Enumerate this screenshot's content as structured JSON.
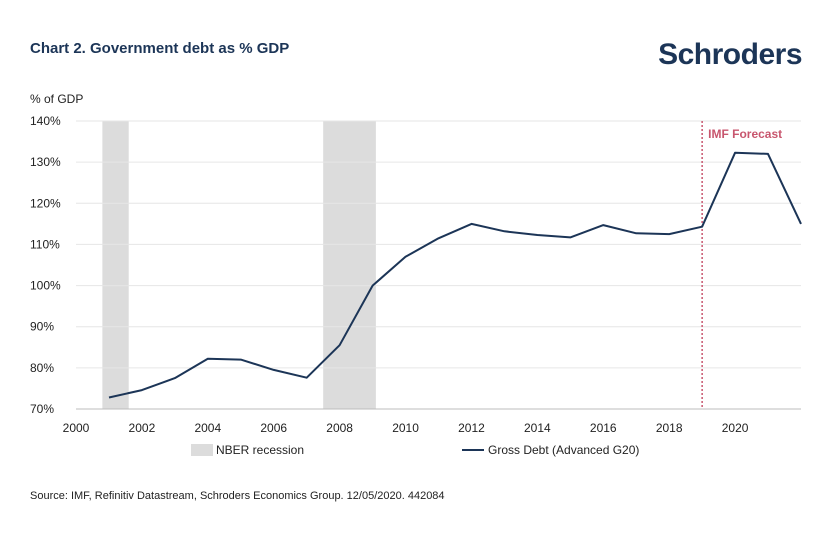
{
  "header": {
    "title": "Chart 2. Government debt as % GDP",
    "logo": "Schroders"
  },
  "footer": {
    "source": "Source: IMF, Refinitiv Datastream, Schroders Economics Group. 12/05/2020. 442084"
  },
  "colors": {
    "line": "#1c3557",
    "recession": "#dcdcdc",
    "forecast": "#c8566e",
    "grid": "#e6e6e6"
  },
  "chart_data": {
    "type": "line",
    "title": "Chart 2. Government debt as % GDP",
    "xlabel": "",
    "ylabel": "% of GDP",
    "xlim": [
      2000,
      2022
    ],
    "ylim": [
      70,
      140
    ],
    "xticks": [
      2000,
      2002,
      2004,
      2006,
      2008,
      2010,
      2012,
      2014,
      2016,
      2018,
      2020
    ],
    "xtick_labels": [
      "2000",
      "2002",
      "2004",
      "2006",
      "2008",
      "2010",
      "2012",
      "2014",
      "2016",
      "2018",
      "2020"
    ],
    "yticks": [
      70,
      80,
      90,
      100,
      110,
      120,
      130,
      140
    ],
    "ytick_labels": [
      "70%",
      "80%",
      "90%",
      "100%",
      "110%",
      "120%",
      "130%",
      "140%"
    ],
    "grid": true,
    "legend_position": "bottom",
    "series": [
      {
        "name": "Gross Debt (Advanced G20)",
        "x": [
          2001,
          2002,
          2003,
          2004,
          2005,
          2006,
          2007,
          2008,
          2009,
          2010,
          2011,
          2012,
          2013,
          2014,
          2015,
          2016,
          2017,
          2018,
          2019,
          2020,
          2021,
          2022
        ],
        "y": [
          72.8,
          74.6,
          77.5,
          82.2,
          82.0,
          79.5,
          77.6,
          85.5,
          100.0,
          107.0,
          111.5,
          115.0,
          113.2,
          112.3,
          111.7,
          114.7,
          112.7,
          112.5,
          114.3,
          132.3,
          132.0,
          115.0
        ]
      }
    ],
    "shaded_regions": [
      {
        "name": "NBER recession",
        "x": [
          2000.8,
          2001.6
        ]
      },
      {
        "name": "NBER recession",
        "x": [
          2007.5,
          2009.1
        ]
      }
    ],
    "annotations": [
      {
        "text": "IMF Forecast",
        "x": 2019
      }
    ],
    "legend": [
      "NBER recession",
      "Gross Debt (Advanced G20)"
    ]
  }
}
